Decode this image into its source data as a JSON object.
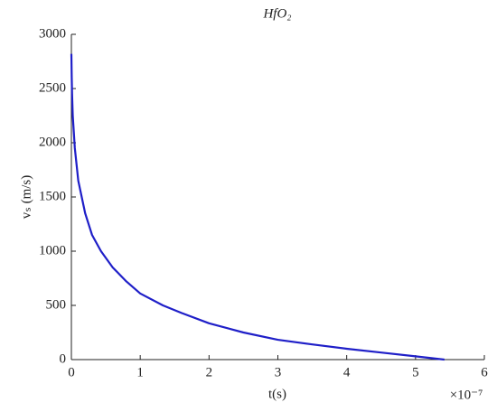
{
  "chart_data": {
    "type": "line",
    "title": "HfO₂",
    "x_label": "t(s)",
    "y_label": "vₛ (m/s)",
    "x_multiplier": "×10⁻⁷",
    "x": [
      0,
      0.005,
      0.01,
      0.02,
      0.05,
      0.1,
      0.2,
      0.3,
      0.43,
      0.6,
      0.8,
      1.0,
      1.33,
      1.6,
      2.0,
      2.5,
      3.0,
      3.5,
      4.0,
      4.5,
      5.0,
      5.42
    ],
    "values": [
      2820,
      2600,
      2450,
      2250,
      1950,
      1650,
      1350,
      1150,
      1000,
      850,
      720,
      610,
      500,
      430,
      335,
      250,
      183,
      140,
      100,
      65,
      30,
      0
    ],
    "color": "#1f1fc8",
    "xlim": [
      0,
      6
    ],
    "xticks": [
      0,
      1,
      2,
      3,
      4,
      5,
      6
    ],
    "ylim": [
      0,
      3000
    ],
    "yticks": [
      0,
      500,
      1000,
      1500,
      2000,
      2500,
      3000
    ]
  }
}
